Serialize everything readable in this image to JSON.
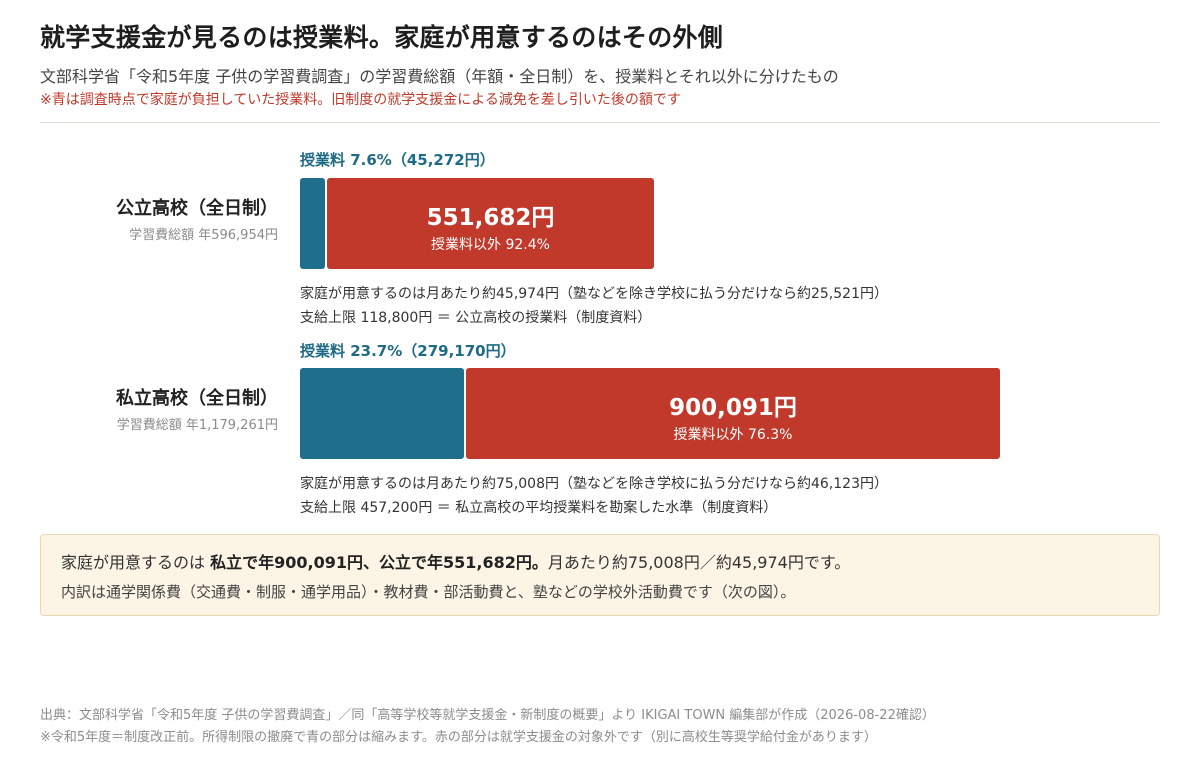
{
  "header": {
    "title": "就学支援金が見るのは授業料。家庭が用意するのはその外側",
    "subtitle": "文部科学省「令和5年度 子供の学習費調査」の学習費総額（年額・全日制）を、授業料とそれ以外に分けたもの",
    "note": "※青は調査時点で家庭が負担していた授業料。旧制度の就学支援金による減免を差し引いた後の額です"
  },
  "colors": {
    "tuition": "#1f6e8c",
    "other": "#c0392b",
    "accent_text": "#1e6b85",
    "note_red": "#c0392b"
  },
  "chart_data": {
    "type": "bar",
    "orientation": "horizontal-stacked",
    "categories": [
      "公立高校（全日制）",
      "私立高校（全日制）"
    ],
    "series": [
      {
        "name": "授業料",
        "values": [
          45272,
          279170
        ],
        "shares_pct": [
          7.6,
          23.7
        ]
      },
      {
        "name": "授業料以外",
        "values": [
          551682,
          900091
        ],
        "shares_pct": [
          92.4,
          76.3
        ]
      }
    ],
    "totals": [
      596954,
      1179261
    ],
    "unit": "円"
  },
  "public": {
    "name": "公立高校（全日制）",
    "total_label": "学習費総額 年596,954円",
    "tuition_label": "授業料 7.6%（45,272円）",
    "other_value": "551,682円",
    "other_share": "授業料以外 92.4%",
    "detail1": "家庭が用意するのは月あたり約45,974円（塾などを除き学校に払う分だけなら約25,521円）",
    "detail2": "支給上限 118,800円 ＝ 公立高校の授業料（制度資料）"
  },
  "private": {
    "name": "私立高校（全日制）",
    "total_label": "学習費総額 年1,179,261円",
    "tuition_label": "授業料 23.7%（279,170円）",
    "other_value": "900,091円",
    "other_share": "授業料以外 76.3%",
    "detail1": "家庭が用意するのは月あたり約75,008円（塾などを除き学校に払う分だけなら約46,123円）",
    "detail2": "支給上限 457,200円 ＝ 私立高校の平均授業料を勘案した水準（制度資料）"
  },
  "summary": {
    "line1_pre": "家庭が用意するのは ",
    "line1_bold": "私立で年900,091円、公立で年551,682円。",
    "line1_post": "月あたり約75,008円／約45,974円です。",
    "line2": "内訳は通学関係費（交通費・制服・通学用品）・教材費・部活動費と、塾などの学校外活動費です（次の図）。"
  },
  "footer": {
    "source": "出典：文部科学省「令和5年度 子供の学習費調査」／同「高等学校等就学支援金・新制度の概要」より IKIGAI TOWN 編集部が作成（2026-08-22確認）",
    "note": "※令和5年度＝制度改正前。所得制限の撤廃で青の部分は縮みます。赤の部分は就学支援金の対象外です（別に高校生等奨学給付金があります）"
  }
}
